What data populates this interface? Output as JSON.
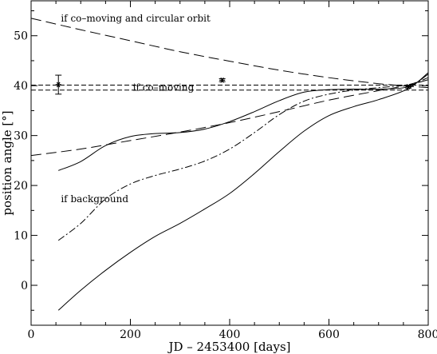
{
  "chart_data": {
    "type": "line",
    "title": "",
    "xlabel": "JD – 2453400 [days]",
    "ylabel": "position angle [°]",
    "xlim": [
      0,
      800
    ],
    "ylim": [
      -8,
      57
    ],
    "xticks": [
      0,
      200,
      400,
      600,
      800
    ],
    "yticks": [
      0,
      10,
      20,
      30,
      40,
      50
    ],
    "grid": false,
    "legend": "none",
    "annotations": [
      {
        "text": "if co–moving and circular orbit",
        "x": 60,
        "y": 53.5
      },
      {
        "text": "if co–moving",
        "x": 205,
        "y": 39.6
      },
      {
        "text": "if background",
        "x": 60,
        "y": 17.3
      }
    ],
    "series": [
      {
        "style": "long-dash",
        "x": [
          0,
          100,
          200,
          300,
          400,
          500,
          600,
          700,
          760,
          800
        ],
        "y": [
          53.5,
          51.2,
          49.0,
          46.8,
          44.9,
          43.1,
          41.6,
          40.4,
          39.9,
          39.6
        ]
      },
      {
        "style": "dash",
        "x": [
          0,
          200,
          400,
          600,
          800
        ],
        "y": [
          40.1,
          40.1,
          40.1,
          40.1,
          40.1
        ]
      },
      {
        "style": "dash",
        "x": [
          0,
          200,
          400,
          600,
          800
        ],
        "y": [
          39.1,
          39.1,
          39.1,
          39.1,
          39.1
        ]
      },
      {
        "style": "long-dash",
        "x": [
          0,
          100,
          200,
          300,
          400,
          500,
          600,
          700,
          760,
          800
        ],
        "y": [
          26.0,
          27.3,
          29.0,
          30.7,
          32.6,
          34.8,
          37.1,
          39.0,
          40.1,
          41.2
        ]
      },
      {
        "style": "solid",
        "x": [
          55,
          100,
          150,
          200,
          250,
          300,
          350,
          400,
          450,
          500,
          550,
          600,
          650,
          700,
          760,
          800
        ],
        "y": [
          23.0,
          24.8,
          28.0,
          29.8,
          30.4,
          30.6,
          31.3,
          32.8,
          34.8,
          37.0,
          38.7,
          39.2,
          39.3,
          39.3,
          39.8,
          42.3
        ]
      },
      {
        "style": "dash-dot",
        "x": [
          55,
          100,
          150,
          200,
          250,
          300,
          350,
          400,
          450,
          500,
          550,
          600,
          650,
          700,
          760,
          800
        ],
        "y": [
          9.0,
          12.4,
          17.3,
          20.3,
          22.0,
          23.3,
          24.9,
          27.3,
          30.6,
          34.2,
          36.9,
          38.3,
          39.1,
          39.6,
          40.2,
          41.6
        ]
      },
      {
        "style": "solid",
        "x": [
          55,
          100,
          150,
          200,
          250,
          300,
          350,
          400,
          450,
          500,
          550,
          600,
          650,
          700,
          760,
          800
        ],
        "y": [
          -5.0,
          -1.0,
          3.0,
          6.6,
          9.8,
          12.4,
          15.3,
          18.4,
          22.4,
          26.8,
          30.9,
          34.0,
          35.8,
          37.2,
          39.4,
          42.6
        ]
      }
    ],
    "measurements": [
      {
        "x": 55,
        "y": 40.2,
        "yerr": 1.9
      },
      {
        "x": 385,
        "y": 41.1,
        "yerr": 0.3
      },
      {
        "x": 760,
        "y": 39.8,
        "yerr": 0.3
      }
    ]
  }
}
